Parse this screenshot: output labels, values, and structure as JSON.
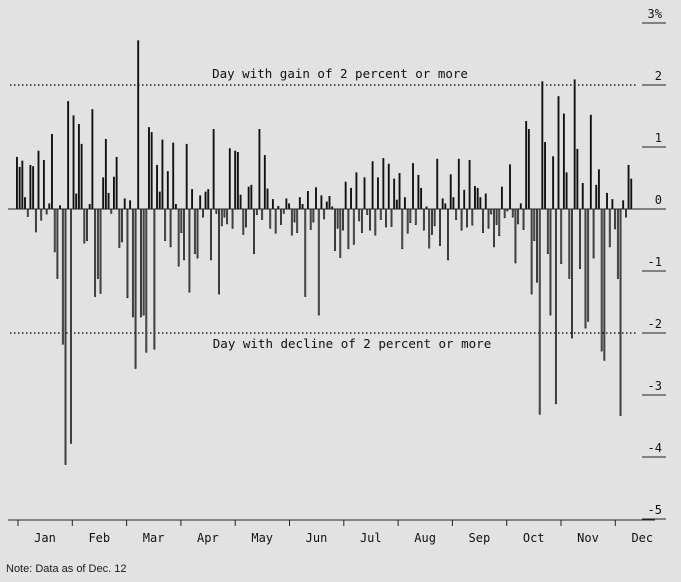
{
  "chart_data": {
    "type": "bar",
    "title": "",
    "xlabel": "",
    "ylabel": "",
    "y_unit_label": "3%",
    "ylim": [
      -5,
      3
    ],
    "y_ticks": [
      "3%",
      "2",
      "1",
      "0",
      "-1",
      "-2",
      "-3",
      "-4",
      "-5"
    ],
    "months": [
      "Jan",
      "Feb",
      "Mar",
      "Apr",
      "May",
      "Jun",
      "Jul",
      "Aug",
      "Sep",
      "Oct",
      "Nov",
      "Dec"
    ],
    "reference_lines": [
      {
        "value": 2,
        "label": "Day with gain of 2 percent or more"
      },
      {
        "value": -2,
        "label": "Day with decline of 2 percent or more"
      }
    ],
    "positive_color": "#111111",
    "negative_color": "#ffffff",
    "values": [
      0.84,
      0.68,
      0.78,
      0.19,
      -0.12,
      0.71,
      0.69,
      -0.37,
      0.94,
      -0.18,
      0.79,
      -0.08,
      0.09,
      1.21,
      -0.69,
      -1.12,
      0.06,
      -2.18,
      -4.12,
      1.74,
      -3.78,
      1.51,
      0.25,
      1.37,
      1.05,
      -0.55,
      -0.51,
      0.08,
      1.61,
      -1.41,
      -1.12,
      -1.36,
      0.51,
      1.13,
      0.26,
      -0.07,
      0.52,
      0.84,
      -0.62,
      -0.53,
      0.17,
      -1.43,
      0.14,
      -1.74,
      -2.57,
      2.72,
      -1.74,
      -1.71,
      -2.31,
      1.32,
      1.24,
      -2.26,
      0.71,
      0.28,
      1.12,
      -0.51,
      0.61,
      -0.61,
      1.07,
      0.08,
      -0.92,
      -0.38,
      -0.82,
      1.05,
      -1.34,
      0.32,
      -0.72,
      -0.79,
      0.22,
      -0.13,
      0.28,
      0.32,
      -0.82,
      1.29,
      -0.07,
      -1.37,
      -0.27,
      -0.13,
      -0.24,
      0.98,
      -0.31,
      0.94,
      0.92,
      0.23,
      -0.41,
      -0.29,
      0.36,
      0.39,
      -0.72,
      -0.09,
      1.29,
      -0.17,
      0.87,
      0.33,
      -0.31,
      0.16,
      -0.39,
      0.05,
      -0.25,
      -0.07,
      0.17,
      0.09,
      -0.42,
      -0.21,
      -0.38,
      0.19,
      0.08,
      -1.41,
      0.29,
      -0.33,
      -0.21,
      0.35,
      -1.71,
      0.22,
      -0.16,
      0.12,
      0.21,
      0.04,
      -0.67,
      -0.31,
      -0.78,
      -0.34,
      0.44,
      -0.64,
      0.34,
      -0.57,
      0.59,
      -0.19,
      -0.38,
      0.51,
      -0.09,
      -0.34,
      0.77,
      -0.42,
      0.51,
      -0.17,
      0.82,
      -0.29,
      0.73,
      -0.28,
      0.49,
      0.15,
      0.58,
      -0.64,
      0.19,
      -0.39,
      -0.22,
      0.74,
      -0.25,
      0.55,
      0.34,
      -0.34,
      0.04,
      -0.63,
      -0.41,
      -0.27,
      0.81,
      -0.59,
      0.17,
      0.09,
      -0.82,
      0.56,
      0.19,
      -0.17,
      0.81,
      -0.34,
      0.31,
      -0.29,
      0.79,
      -0.26,
      0.37,
      0.34,
      0.19,
      -0.38,
      0.25,
      -0.31,
      -0.08,
      -0.61,
      -0.25,
      -0.43,
      0.36,
      -0.14,
      -0.03,
      0.72,
      -0.13,
      -0.87,
      -0.24,
      0.09,
      -0.33,
      1.42,
      1.29,
      -1.37,
      -0.51,
      -1.18,
      -3.31,
      2.06,
      1.08,
      -0.72,
      -1.71,
      0.85,
      -3.14,
      1.82,
      -0.88,
      1.54,
      0.59,
      -1.12,
      -2.08,
      2.09,
      0.97,
      -0.96,
      0.42,
      -1.92,
      -1.81,
      1.52,
      -0.79,
      0.39,
      0.64,
      -2.29,
      -2.44,
      0.26,
      -0.61,
      0.16,
      -0.32,
      -1.12,
      -3.33,
      0.14,
      -0.13,
      0.71,
      0.49
    ]
  },
  "note": "Note: Data as of Dec. 12"
}
